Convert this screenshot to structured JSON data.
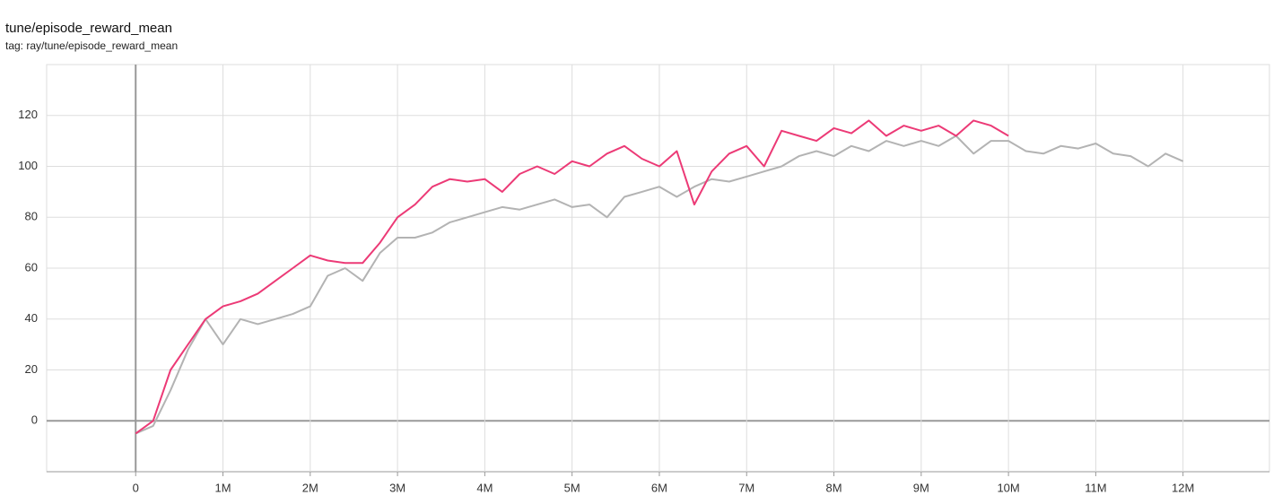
{
  "chart_data": {
    "type": "line",
    "title": "tune/episode_reward_mean",
    "subtitle": "tag: ray/tune/episode_reward_mean",
    "xlim": [
      -1020000,
      12990000
    ],
    "ylim": [
      -20,
      140
    ],
    "xticks": [
      0,
      {
        "value": 1000000,
        "label": "1M"
      },
      {
        "value": 2000000,
        "label": "2M"
      },
      {
        "value": 3000000,
        "label": "3M"
      },
      {
        "value": 4000000,
        "label": "4M"
      },
      {
        "value": 5000000,
        "label": "5M"
      },
      {
        "value": 6000000,
        "label": "6M"
      },
      {
        "value": 7000000,
        "label": "7M"
      },
      {
        "value": 8000000,
        "label": "8M"
      },
      {
        "value": 9000000,
        "label": "9M"
      },
      {
        "value": 10000000,
        "label": "10M"
      },
      {
        "value": 11000000,
        "label": "11M"
      },
      {
        "value": 12000000,
        "label": "12M"
      }
    ],
    "yticks": [
      0,
      20,
      40,
      60,
      80,
      100,
      120
    ],
    "grid": true,
    "series": [
      {
        "color": "#b3b3b3",
        "x": [
          0,
          200000,
          400000,
          600000,
          800000,
          1000000,
          1200000,
          1400000,
          1600000,
          1800000,
          2000000,
          2200000,
          2400000,
          2600000,
          2800000,
          3000000,
          3200000,
          3400000,
          3600000,
          3800000,
          4000000,
          4200000,
          4400000,
          4600000,
          4800000,
          5000000,
          5200000,
          5400000,
          5600000,
          5800000,
          6000000,
          6200000,
          6400000,
          6600000,
          6800000,
          7000000,
          7200000,
          7400000,
          7600000,
          7800000,
          8000000,
          8200000,
          8400000,
          8600000,
          8800000,
          9000000,
          9200000,
          9400000,
          9600000,
          9800000,
          10000000,
          10200000,
          10400000,
          10600000,
          10800000,
          11000000,
          11200000,
          11400000,
          11600000,
          11800000,
          12000000
        ],
        "values": [
          -5,
          -2,
          12,
          28,
          40,
          30,
          40,
          38,
          40,
          42,
          45,
          57,
          60,
          55,
          66,
          72,
          72,
          74,
          78,
          80,
          82,
          84,
          83,
          85,
          87,
          84,
          85,
          80,
          88,
          90,
          92,
          88,
          92,
          95,
          94,
          96,
          98,
          100,
          104,
          106,
          104,
          108,
          106,
          110,
          108,
          110,
          108,
          112,
          105,
          110,
          110,
          106,
          105,
          108,
          107,
          109,
          105,
          104,
          100,
          105,
          102
        ]
      },
      {
        "color": "#ec3a76",
        "x": [
          0,
          200000,
          400000,
          600000,
          800000,
          1000000,
          1200000,
          1400000,
          1600000,
          1800000,
          2000000,
          2200000,
          2400000,
          2600000,
          2800000,
          3000000,
          3200000,
          3400000,
          3600000,
          3800000,
          4000000,
          4200000,
          4400000,
          4600000,
          4800000,
          5000000,
          5200000,
          5400000,
          5600000,
          5800000,
          6000000,
          6200000,
          6400000,
          6600000,
          6800000,
          7000000,
          7200000,
          7400000,
          7600000,
          7800000,
          8000000,
          8200000,
          8400000,
          8600000,
          8800000,
          9000000,
          9200000,
          9400000,
          9600000,
          9800000,
          10000000
        ],
        "values": [
          -5,
          0,
          20,
          30,
          40,
          45,
          47,
          50,
          55,
          60,
          65,
          63,
          62,
          62,
          70,
          80,
          85,
          92,
          95,
          94,
          95,
          90,
          97,
          100,
          97,
          102,
          100,
          105,
          108,
          103,
          100,
          106,
          85,
          98,
          105,
          108,
          100,
          114,
          112,
          110,
          115,
          113,
          118,
          112,
          116,
          114,
          116,
          112,
          118,
          116,
          112
        ]
      }
    ]
  }
}
